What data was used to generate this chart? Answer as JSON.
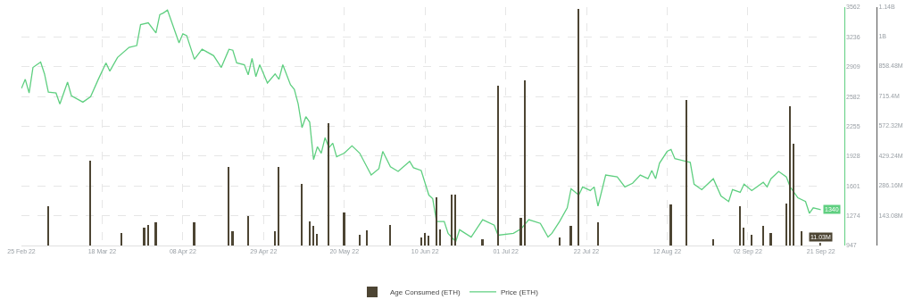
{
  "chart_data": {
    "type": "line",
    "xlim": [
      "2022-02-25",
      "2022-09-21"
    ],
    "xticks": [
      {
        "value": "2022-02-25",
        "label": "25 Feb 22"
      },
      {
        "value": "2022-03-18",
        "label": "18 Mar 22"
      },
      {
        "value": "2022-04-08",
        "label": "08 Apr 22"
      },
      {
        "value": "2022-04-29",
        "label": "29 Apr 22"
      },
      {
        "value": "2022-05-20",
        "label": "20 May 22"
      },
      {
        "value": "2022-06-10",
        "label": "10 Jun 22"
      },
      {
        "value": "2022-07-01",
        "label": "01 Jul 22"
      },
      {
        "value": "2022-07-22",
        "label": "22 Jul 22"
      },
      {
        "value": "2022-08-12",
        "label": "12 Aug 22"
      },
      {
        "value": "2022-09-02",
        "label": "02 Sep 22"
      },
      {
        "value": "2022-09-21",
        "label": "21 Sep 22"
      }
    ],
    "ylim": [
      947,
      3562
    ],
    "yticks": [
      947,
      1274,
      1601,
      1928,
      2255,
      2582,
      2909,
      3236,
      3562
    ],
    "y2lim": [
      0,
      1140000000
    ],
    "y2ticks": [
      {
        "value": 143080000,
        "label": "143.08M"
      },
      {
        "value": 286160000,
        "label": "286.16M"
      },
      {
        "value": 429240000,
        "label": "429.24M"
      },
      {
        "value": 572320000,
        "label": "572.32M"
      },
      {
        "value": 715400000,
        "label": "715.4M"
      },
      {
        "value": 858480000,
        "label": "858.48M"
      },
      {
        "value": 1000000000,
        "label": "1B"
      },
      {
        "value": 1140000000,
        "label": "1.14B"
      }
    ],
    "grid": true,
    "legend": "bottom",
    "marker": "none",
    "line_style": "solid",
    "series": [
      {
        "name": "Price (ETH)",
        "color": "#5fcf80",
        "x": [
          "2022-02-25",
          "2022-02-26",
          "2022-02-27",
          "2022-02-28",
          "2022-03-02",
          "2022-03-03",
          "2022-03-04",
          "2022-03-06",
          "2022-03-07",
          "2022-03-09",
          "2022-03-10",
          "2022-03-13",
          "2022-03-15",
          "2022-03-17",
          "2022-03-19",
          "2022-03-20",
          "2022-03-22",
          "2022-03-25",
          "2022-03-27",
          "2022-03-28",
          "2022-03-30",
          "2022-04-01",
          "2022-04-02",
          "2022-04-03",
          "2022-04-04",
          "2022-04-07",
          "2022-04-08",
          "2022-04-09",
          "2022-04-11",
          "2022-04-13",
          "2022-04-16",
          "2022-04-18",
          "2022-04-20",
          "2022-04-21",
          "2022-04-22",
          "2022-04-24",
          "2022-04-25",
          "2022-04-26",
          "2022-04-27",
          "2022-04-28",
          "2022-04-30",
          "2022-05-02",
          "2022-05-03",
          "2022-05-04",
          "2022-05-06",
          "2022-05-07",
          "2022-05-08",
          "2022-05-09",
          "2022-05-10",
          "2022-05-11",
          "2022-05-12",
          "2022-05-13",
          "2022-05-14",
          "2022-05-15",
          "2022-05-16",
          "2022-05-17",
          "2022-05-18",
          "2022-05-20",
          "2022-05-22",
          "2022-05-24",
          "2022-05-27",
          "2022-05-29",
          "2022-05-30",
          "2022-06-01",
          "2022-06-03",
          "2022-06-06",
          "2022-06-07",
          "2022-06-09",
          "2022-06-11",
          "2022-06-12",
          "2022-06-13",
          "2022-06-15",
          "2022-06-16",
          "2022-06-18",
          "2022-06-19",
          "2022-06-22",
          "2022-06-25",
          "2022-06-28",
          "2022-06-29",
          "2022-07-03",
          "2022-07-05",
          "2022-07-07",
          "2022-07-10",
          "2022-07-12",
          "2022-07-13",
          "2022-07-15",
          "2022-07-17",
          "2022-07-18",
          "2022-07-20",
          "2022-07-21",
          "2022-07-23",
          "2022-07-24",
          "2022-07-25",
          "2022-07-27",
          "2022-07-30",
          "2022-08-01",
          "2022-08-03",
          "2022-08-05",
          "2022-08-07",
          "2022-08-08",
          "2022-08-09",
          "2022-08-10",
          "2022-08-12",
          "2022-08-13",
          "2022-08-14",
          "2022-08-17",
          "2022-08-18",
          "2022-08-19",
          "2022-08-21",
          "2022-08-24",
          "2022-08-26",
          "2022-08-28",
          "2022-08-29",
          "2022-08-31",
          "2022-09-01",
          "2022-09-03",
          "2022-09-06",
          "2022-09-07",
          "2022-09-08",
          "2022-09-10",
          "2022-09-12",
          "2022-09-13",
          "2022-09-15",
          "2022-09-17",
          "2022-09-18",
          "2022-09-19",
          "2022-09-21"
        ],
        "values": [
          2670,
          2770,
          2620,
          2900,
          2960,
          2830,
          2630,
          2620,
          2500,
          2740,
          2590,
          2520,
          2580,
          2770,
          2950,
          2860,
          3010,
          3120,
          3140,
          3370,
          3390,
          3280,
          3480,
          3500,
          3530,
          3170,
          3270,
          3250,
          2990,
          3100,
          3030,
          2900,
          3100,
          3090,
          2950,
          2930,
          2820,
          3000,
          2800,
          2930,
          2730,
          2830,
          2770,
          2930,
          2710,
          2660,
          2500,
          2240,
          2360,
          2300,
          1890,
          2030,
          1960,
          2130,
          2020,
          2070,
          1920,
          1960,
          2040,
          1960,
          1720,
          1790,
          1980,
          1810,
          1760,
          1870,
          1800,
          1770,
          1500,
          1460,
          1210,
          1210,
          1080,
          990,
          1120,
          1040,
          1230,
          1170,
          1060,
          1080,
          1130,
          1230,
          1190,
          1040,
          1080,
          1210,
          1360,
          1570,
          1500,
          1590,
          1550,
          1590,
          1380,
          1720,
          1700,
          1590,
          1630,
          1720,
          1680,
          1770,
          1680,
          1850,
          1980,
          2000,
          1900,
          1870,
          1860,
          1620,
          1560,
          1680,
          1490,
          1430,
          1560,
          1530,
          1620,
          1550,
          1640,
          1590,
          1680,
          1760,
          1700,
          1590,
          1470,
          1430,
          1300,
          1360,
          1340
        ],
        "value_labels": [
          null,
          null,
          null,
          null,
          null,
          null,
          null,
          null,
          null,
          null,
          null,
          null,
          null,
          null,
          null,
          null,
          null,
          null,
          null,
          null,
          null,
          null,
          null,
          null,
          null,
          null,
          null,
          null,
          null,
          null,
          null,
          null,
          null,
          null,
          null,
          null,
          null,
          null,
          null,
          null,
          null,
          null,
          null,
          null,
          null,
          null,
          null,
          null,
          null,
          null,
          null,
          null,
          null,
          null,
          null,
          null,
          null,
          null,
          null,
          null,
          null,
          null,
          null,
          null,
          null,
          null,
          null,
          null,
          null,
          null,
          null,
          null,
          null,
          null,
          null,
          null,
          null,
          null,
          null,
          null,
          null,
          null,
          null,
          null,
          null,
          null,
          null,
          null,
          null,
          null,
          null,
          null,
          null,
          null,
          null,
          null,
          null,
          null,
          null,
          null,
          null,
          null,
          null,
          null,
          null,
          null,
          null,
          null,
          null,
          null,
          null,
          null,
          null,
          null,
          null,
          null,
          null,
          null,
          null,
          null,
          null,
          null,
          null,
          null,
          null,
          null,
          "1340"
        ]
      },
      {
        "name": "Age Consumed (ETH)",
        "type": "bar",
        "axis": "y2",
        "color": "#4d4533",
        "x": [
          "2022-03-04",
          "2022-03-15",
          "2022-03-23",
          "2022-03-29",
          "2022-03-30",
          "2022-04-01",
          "2022-04-11",
          "2022-04-20",
          "2022-04-21",
          "2022-04-25",
          "2022-05-02",
          "2022-05-03",
          "2022-05-09",
          "2022-05-11",
          "2022-05-12",
          "2022-05-13",
          "2022-05-16",
          "2022-05-20",
          "2022-05-24",
          "2022-05-26",
          "2022-06-01",
          "2022-06-09",
          "2022-06-10",
          "2022-06-11",
          "2022-06-13",
          "2022-06-14",
          "2022-06-17",
          "2022-06-18",
          "2022-06-25",
          "2022-06-29",
          "2022-07-05",
          "2022-07-06",
          "2022-07-15",
          "2022-07-18",
          "2022-07-20",
          "2022-07-25",
          "2022-08-13",
          "2022-08-17",
          "2022-08-24",
          "2022-08-31",
          "2022-09-01",
          "2022-09-03",
          "2022-09-06",
          "2022-09-08",
          "2022-09-12",
          "2022-09-13",
          "2022-09-14",
          "2022-09-16",
          "2022-09-21"
        ],
        "values": [
          188000000,
          405000000,
          60000000,
          86000000,
          98000000,
          109000000,
          113000000,
          375000000,
          68000000,
          139000000,
          68000000,
          375000000,
          296000000,
          116000000,
          94000000,
          56000000,
          585000000,
          158000000,
          53000000,
          71000000,
          98000000,
          40000000,
          60000000,
          45000000,
          229000000,
          79000000,
          244000000,
          244000000,
          30000000,
          766000000,
          131000000,
          788000000,
          40000000,
          94000000,
          1130000000,
          113000000,
          195000000,
          698000000,
          30000000,
          188000000,
          86000000,
          50000000,
          94000000,
          60000000,
          199000000,
          664000000,
          488000000,
          68000000,
          11030000
        ],
        "value_labels": [
          null,
          null,
          null,
          null,
          null,
          null,
          null,
          null,
          null,
          null,
          null,
          null,
          null,
          null,
          null,
          null,
          null,
          null,
          null,
          null,
          null,
          null,
          null,
          null,
          null,
          null,
          null,
          null,
          null,
          null,
          null,
          null,
          null,
          null,
          null,
          null,
          null,
          null,
          null,
          null,
          null,
          null,
          null,
          null,
          null,
          null,
          null,
          null,
          "11.03M"
        ]
      }
    ]
  }
}
